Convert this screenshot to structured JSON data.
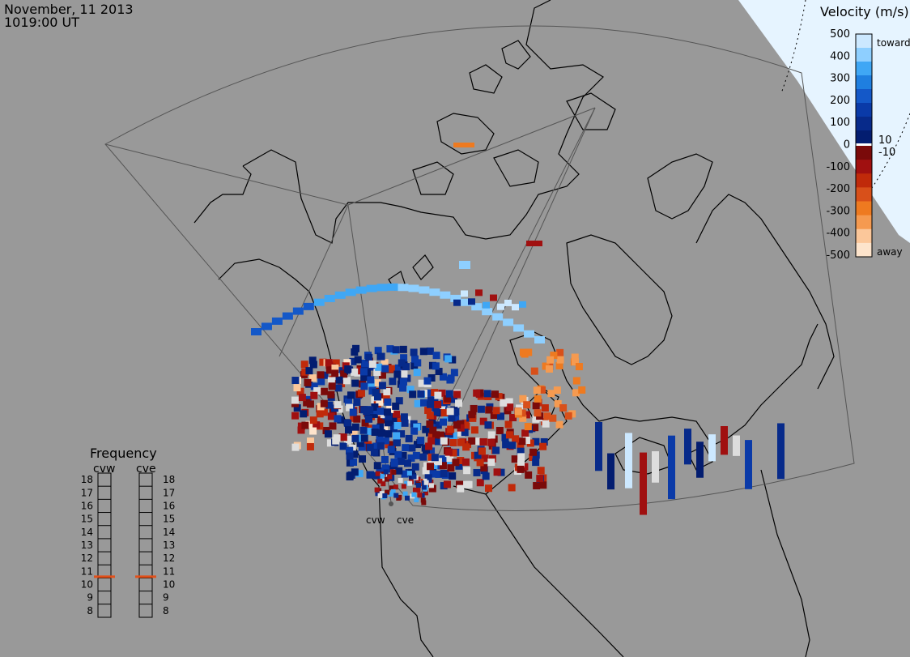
{
  "header": {
    "date": "November, 11 2013",
    "time": "1019:00 UT"
  },
  "velocity_legend": {
    "title": "Velocity (m/s)",
    "ticks_positive": [
      "500",
      "400",
      "300",
      "200",
      "100",
      "0"
    ],
    "ticks_negative": [
      "-100",
      "-200",
      "-300",
      "-400",
      "-500"
    ],
    "inner_pos": "10",
    "inner_neg": "-10",
    "toward_label": "toward",
    "away_label": "away",
    "colors_toward": [
      "#cce8ff",
      "#8ecfff",
      "#3fa7f5",
      "#1f7fe0",
      "#1458c8",
      "#0a3aa8",
      "#072a8a",
      "#031d70"
    ],
    "colors_away": [
      "#7a0a0a",
      "#a01010",
      "#c02a0a",
      "#d8501a",
      "#ee7a20",
      "#f59a50",
      "#fbc79a",
      "#fde4cc"
    ]
  },
  "frequency_legend": {
    "title": "Frequency",
    "left_radar": "cvw",
    "right_radar": "cve",
    "ticks": [
      "18",
      "17",
      "16",
      "15",
      "14",
      "13",
      "12",
      "11",
      "10",
      "9",
      "8"
    ],
    "cvw_freq_mhz": 10.6,
    "cve_freq_mhz": 10.6,
    "marker_color": "#e2501a"
  },
  "radar_sites": {
    "west_label": "cvw",
    "east_label": "cve"
  },
  "colors": {
    "background": "#999999",
    "polar_cap": "#e6f4ff",
    "land_outline": "#000000"
  }
}
